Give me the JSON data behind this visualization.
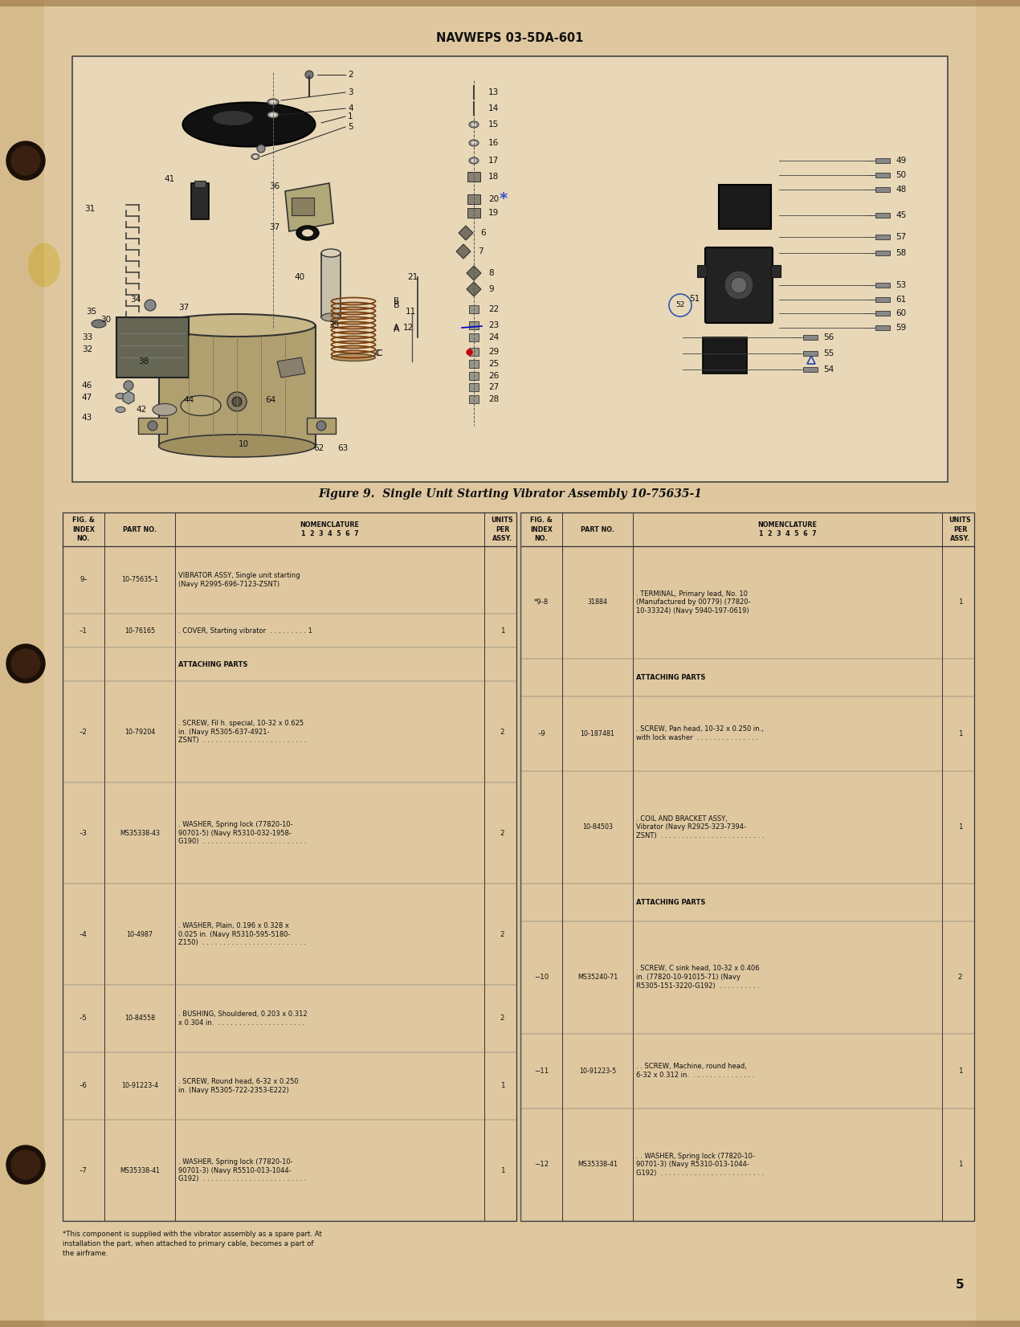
{
  "bg_color": "#e8d5b0",
  "page_bg": "#e2c99a",
  "header_text": "NAVWEPS 03-5DA-601",
  "page_number": "5",
  "figure_caption": "Figure 9.  Single Unit Starting Vibrator Assembly 10-75635-1",
  "left_table_rows": [
    [
      "9–",
      "10-75635-1",
      "VIBRATOR ASSY, Single unit starting\n(Navy R2995-696-7123-ZSNT)",
      ""
    ],
    [
      "–1",
      "10-76165",
      ". COVER, Starting vibrator  . . . . . . . . . 1",
      "1"
    ],
    [
      "",
      "",
      "ATTACHING PARTS",
      ""
    ],
    [
      "–2",
      "10-79204",
      ". SCREW, Fil h. special, 10-32 x 0.625\nin. (Navy R5305-637-4921-\nZSNT)  . . . . . . . . . . . . . . . . . . . . . . . . .",
      "2"
    ],
    [
      "–3",
      "MS35338-43",
      ". WASHER, Spring lock (77820-10-\n90701-5) (Navy R5310-032-1958-\nG190)  . . . . . . . . . . . . . . . . . . . . . . . . .",
      "2"
    ],
    [
      "–4",
      "10-4987",
      ". WASHER, Plain, 0.196 x 0.328 x\n0.025 in. (Navy R5310-595-5180-\nZ150)  . . . . . . . . . . . . . . . . . . . . . . . . .",
      "2"
    ],
    [
      "–5",
      "10-84558",
      ". BUSHING, Shouldered, 0.203 x 0.312\nx 0.304 in.  . . . . . . . . . . . . . . . . . . . . .",
      "2"
    ],
    [
      "–6",
      "10-91223-4",
      ". SCREW, Round head, 6-32 x 0.250\nin. (Navy R5305-722-2353-E222)",
      "1"
    ],
    [
      "–7",
      "MS35338-41",
      ". WASHER, Spring lock (77820-10-\n90701-3) (Navy R5510-013-1044-\nG192)  . . . . . . . . . . . . . . . . . . . . . . . . .",
      "1"
    ]
  ],
  "right_table_rows": [
    [
      "*9-8",
      "31884",
      ". TERMINAL, Primary lead, No. 10\n(Manufactured by 00779) (77820-\n10-33324) (Navy 5940-197-0619)",
      "1"
    ],
    [
      "",
      "",
      "ATTACHING PARTS",
      ""
    ],
    [
      "–9",
      "10-187481",
      ". SCREW, Pan head, 10-32 x 0.250 in.,\nwith lock washer  . . . . . . . . . . . . . . .",
      "1"
    ],
    [
      "",
      "10-84503",
      ". COIL AND BRACKET ASSY,\nVibrator (Navy R2925-323-7394-\nZSNT)  . . . . . . . . . . . . . . . . . . . . . . . . .",
      "1"
    ],
    [
      "",
      "",
      "ATTACHING PARTS",
      ""
    ],
    [
      "−10",
      "MS35240-71",
      ". SCREW, C sink head, 10-32 x 0.406\nin. (77820-10-91015-71) (Navy\nR5305-151-3220-G192)  . . . . . . . . . .",
      "2"
    ],
    [
      "−11",
      "10-91223-5",
      ". . SCREW, Machine, round head,\n6-32 x 0.312 in.  . . . . . . . . . . . . . . .",
      "1"
    ],
    [
      "−12",
      "MS35338-41",
      ". . WASHER, Spring lock (77820-10-\n90701-3) (Navy R5310-013-1044-\nG192)  . . . . . . . . . . . . . . . . . . . . . . . . .",
      "1"
    ]
  ],
  "footnote": "*This component is supplied with the vibrator assembly as a spare part. At\ninstallation the part, when attached to primary cable, becomes a part of\nthe airframe."
}
